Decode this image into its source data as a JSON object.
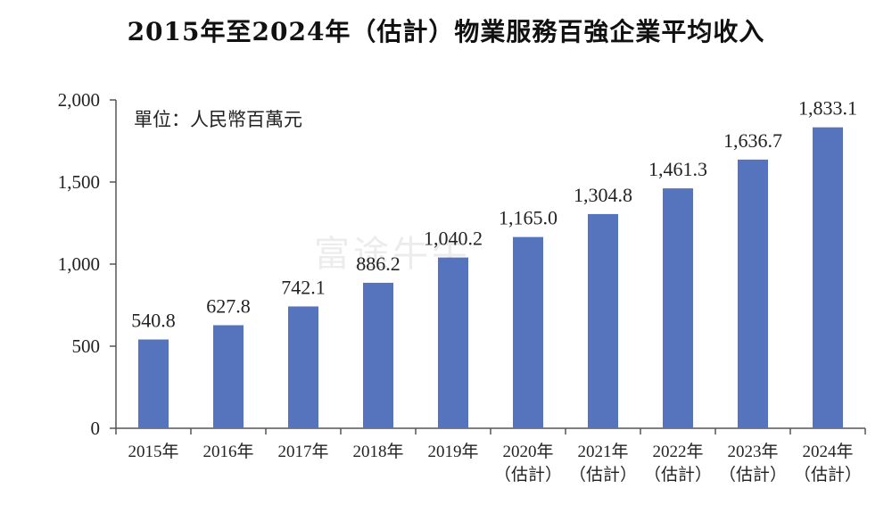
{
  "title": "2015年至2024年（估計）物業服務百強企業平均收入",
  "unit_note": "單位：人民幣百萬元",
  "watermark": "富途牛牛",
  "colors": {
    "bar": "#5673bd",
    "axis": "#555555",
    "text": "#222222"
  },
  "chart_data": {
    "type": "bar",
    "title": "2015年至2024年（估計）物業服務百強企業平均收入",
    "xlabel": "",
    "ylabel": "",
    "ylim": [
      0,
      2000
    ],
    "yticks": [
      "0",
      "500",
      "1,000",
      "1,500",
      "2,000"
    ],
    "ytick_values": [
      0,
      500,
      1000,
      1500,
      2000
    ],
    "categories": [
      [
        "2015年"
      ],
      [
        "2016年"
      ],
      [
        "2017年"
      ],
      [
        "2018年"
      ],
      [
        "2019年"
      ],
      [
        "2020年",
        "（估計）"
      ],
      [
        "2021年",
        "（估計）"
      ],
      [
        "2022年",
        "（估計）"
      ],
      [
        "2023年",
        "（估計）"
      ],
      [
        "2024年",
        "（估計）"
      ]
    ],
    "values": [
      540.8,
      627.8,
      742.1,
      886.2,
      1040.2,
      1165.0,
      1304.8,
      1461.3,
      1636.7,
      1833.1
    ],
    "value_labels": [
      "540.8",
      "627.8",
      "742.1",
      "886.2",
      "1,040.2",
      "1,165.0",
      "1,304.8",
      "1,461.3",
      "1,636.7",
      "1,833.1"
    ],
    "grid": false,
    "legend": "none"
  }
}
